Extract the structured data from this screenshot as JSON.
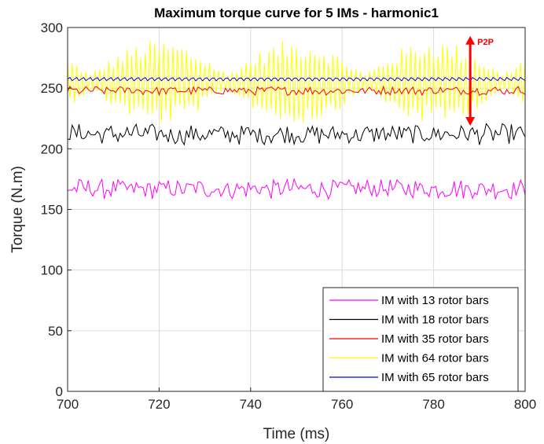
{
  "chart_data": {
    "type": "line",
    "title": "Maximum torque curve for 5 IMs - harmonic1",
    "xlabel": "Time (ms)",
    "ylabel": "Torque (N.m)",
    "xlim": [
      700,
      800
    ],
    "ylim": [
      0,
      300
    ],
    "xticks": [
      700,
      720,
      740,
      760,
      780,
      800
    ],
    "yticks": [
      0,
      50,
      100,
      150,
      200,
      250,
      300
    ],
    "grid": true,
    "legend_position": "bottom-right",
    "sample_step_ms": 0.5,
    "series": [
      {
        "name": "IM with 13 rotor bars",
        "color": "#ff00ff",
        "mean": 167,
        "amplitude": 9,
        "ripple": "noisy"
      },
      {
        "name": "IM with 18 rotor bars",
        "color": "#000000",
        "mean": 212,
        "amplitude": 9,
        "ripple": "noisy"
      },
      {
        "name": "IM with 35 rotor bars",
        "color": "#ff0000",
        "mean": 248,
        "amplitude": 4,
        "ripple": "noisy"
      },
      {
        "name": "IM with 64 rotor bars",
        "color": "#ffff00",
        "mean": 255,
        "amplitude": 35,
        "ripple": "modulated",
        "envelope_period_ms": 30
      },
      {
        "name": "IM with 65 rotor bars",
        "color": "#0000ff",
        "mean": 257.5,
        "amplitude": 1.5,
        "ripple": "fast"
      }
    ],
    "annotations": [
      {
        "text": "P2P",
        "color": "#ff0000",
        "x": 788,
        "y_from": 219,
        "y_to": 293,
        "type": "double-arrow"
      }
    ]
  }
}
